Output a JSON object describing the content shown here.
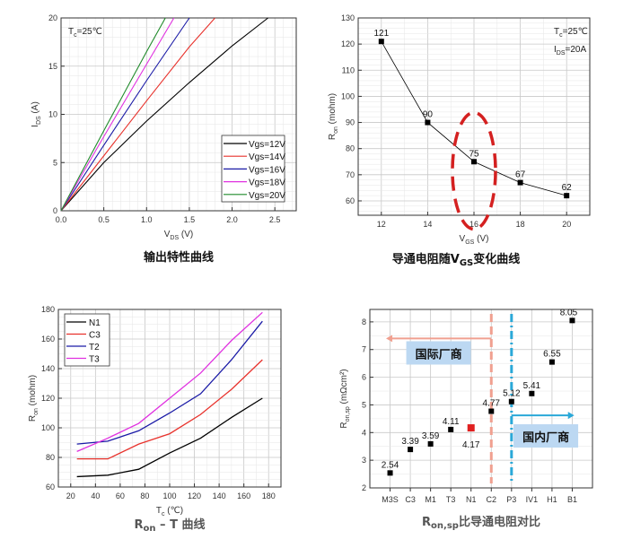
{
  "chart_data": [
    {
      "type": "line",
      "title": {
        "pre": "输出特性曲线",
        "sub": "",
        "post": ""
      },
      "xlabel": {
        "main": "V",
        "sub": "DS",
        "rest": " (V)"
      },
      "ylabel": {
        "main": "I",
        "sub": "DS",
        "rest": " (A)"
      },
      "xlim": [
        0,
        2.75
      ],
      "ylim": [
        0,
        20
      ],
      "xticks": [
        "0.0",
        "0.5",
        "1.0",
        "1.5",
        "2.0",
        "2.5"
      ],
      "yticks": [
        "0",
        "5",
        "10",
        "15",
        "20"
      ],
      "grid": true,
      "legend": "bottom-right",
      "annotation": {
        "main": "T",
        "sub": "c",
        "rest": "=25℃"
      },
      "series": [
        {
          "name": "Vgs=12V",
          "color": "#000000",
          "points": [
            [
              0,
              0
            ],
            [
              0.5,
              5.0
            ],
            [
              1.0,
              9.3
            ],
            [
              1.5,
              13.3
            ],
            [
              2.0,
              17.1
            ],
            [
              2.42,
              20
            ]
          ]
        },
        {
          "name": "Vgs=14V",
          "color": "#e8322c",
          "points": [
            [
              0,
              0
            ],
            [
              0.5,
              5.7
            ],
            [
              1.0,
              11.4
            ],
            [
              1.5,
              17.0
            ],
            [
              1.8,
              20
            ]
          ]
        },
        {
          "name": "Vgs=16V",
          "color": "#1a1aa6",
          "points": [
            [
              0,
              0
            ],
            [
              0.5,
              6.8
            ],
            [
              1.0,
              13.5
            ],
            [
              1.5,
              20
            ]
          ]
        },
        {
          "name": "Vgs=18V",
          "color": "#e030e0",
          "points": [
            [
              0,
              0
            ],
            [
              0.5,
              7.7
            ],
            [
              1.0,
              15.2
            ],
            [
              1.32,
              20
            ]
          ]
        },
        {
          "name": "Vgs=20V",
          "color": "#1f8a2a",
          "points": [
            [
              0,
              0
            ],
            [
              0.5,
              8.3
            ],
            [
              1.0,
              16.5
            ],
            [
              1.22,
              20
            ]
          ]
        }
      ]
    },
    {
      "type": "line",
      "title": {
        "pre": "导通电阻随V",
        "sub": "GS",
        "post": "变化曲线"
      },
      "xlabel": {
        "main": "V",
        "sub": "GS",
        "rest": " (V)"
      },
      "ylabel": {
        "main": "R",
        "sub": "on",
        "rest": " (mohm)"
      },
      "xlim": [
        11,
        21
      ],
      "ylim": [
        54.5,
        130
      ],
      "xticks": [
        "12",
        "14",
        "16",
        "18",
        "20"
      ],
      "yticks": [
        "60",
        "70",
        "80",
        "90",
        "100",
        "110",
        "120",
        "130"
      ],
      "grid": true,
      "annotations": [
        {
          "main": "T",
          "sub": "c",
          "rest": "=25℃"
        },
        {
          "main": "I",
          "sub": "DS",
          "rest": "=20A"
        }
      ],
      "highlight": {
        "shape": "dashed-ellipse",
        "color": "#d42020",
        "x": 16
      },
      "series": [
        {
          "color": "#000000",
          "x": [
            12,
            14,
            16,
            18,
            20
          ],
          "values": [
            121,
            90,
            75,
            67,
            62
          ],
          "labels": [
            "121",
            "90",
            "75",
            "67",
            "62"
          ]
        }
      ]
    },
    {
      "type": "line",
      "title": {
        "pre": "R",
        "sub": "on",
        "post": " – T 曲线"
      },
      "xlabel": {
        "main": "T",
        "sub": "c",
        "rest": " (℃)"
      },
      "ylabel": {
        "main": "R",
        "sub": "on",
        "rest": " (mohm)"
      },
      "xlim": [
        10,
        190
      ],
      "ylim": [
        60,
        180
      ],
      "xticks": [
        "20",
        "40",
        "60",
        "80",
        "100",
        "120",
        "140",
        "160",
        "180"
      ],
      "yticks": [
        "60",
        "80",
        "100",
        "120",
        "140",
        "160",
        "180"
      ],
      "grid": true,
      "legend": "top-left",
      "x": [
        25,
        50,
        75,
        100,
        125,
        150,
        175
      ],
      "series": [
        {
          "name": "N1",
          "color": "#000000",
          "values": [
            67,
            68,
            72,
            83,
            93,
            107,
            120
          ]
        },
        {
          "name": "C3",
          "color": "#e8322c",
          "values": [
            79,
            79,
            89,
            96,
            109,
            126,
            146
          ]
        },
        {
          "name": "T2",
          "color": "#1a1aa6",
          "values": [
            89,
            91,
            98,
            110,
            123,
            146,
            172
          ]
        },
        {
          "name": "T3",
          "color": "#e030e0",
          "values": [
            84,
            93,
            103,
            120,
            137,
            159,
            178
          ]
        }
      ]
    },
    {
      "type": "scatter",
      "title": {
        "pre": "R",
        "sub": "on,sp",
        "post": "比导通电阻对比"
      },
      "xlabel": {
        "main": "",
        "sub": "",
        "rest": ""
      },
      "ylabel": {
        "main": "R",
        "sub": "on,sp",
        "rest": " (mΩcm²)"
      },
      "ylim": [
        2,
        8.45
      ],
      "yticks": [
        "2",
        "3",
        "4",
        "5",
        "6",
        "7",
        "8"
      ],
      "grid": true,
      "categories": [
        "M3S",
        "C3",
        "M1",
        "T3",
        "N1",
        "C2",
        "P3",
        "IV1",
        "H1",
        "B1"
      ],
      "values": [
        2.54,
        3.39,
        3.59,
        4.11,
        4.17,
        4.77,
        5.12,
        5.41,
        6.55,
        8.05
      ],
      "labels": [
        "2.54",
        "3.39",
        "3.59",
        "4.11",
        "4.17",
        "4.77",
        "5.12",
        "5.41",
        "6.55",
        "8.05"
      ],
      "highlight_category": "N1",
      "highlight_color": "#e02020",
      "dividers": [
        {
          "category": "C2",
          "style": "dashed",
          "color": "#f0a090"
        },
        {
          "category": "P3",
          "style": "dash-dot",
          "color": "#2aa8d8"
        }
      ],
      "groups": [
        {
          "label": "国际厂商",
          "direction": "left",
          "color": "#f0a090",
          "box_color": "#bcd8f2"
        },
        {
          "label": "国内厂商",
          "direction": "right",
          "color": "#2aa8d8",
          "box_color": "#bcd8f2"
        }
      ]
    }
  ]
}
